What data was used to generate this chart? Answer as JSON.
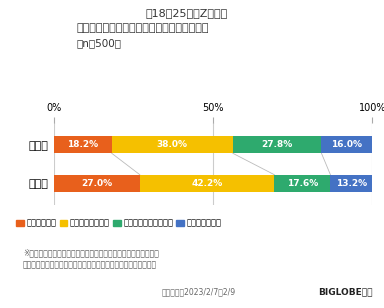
{
  "title_line1": "【18〜25歳のZ世代】",
  "title_line2": "日常生活でタイパ・コスパを意識しているか",
  "title_line3": "（n＝500）",
  "categories": [
    "タイパ",
    "コスパ"
  ],
  "segments": [
    {
      "label": "意識している",
      "color": "#E8601C",
      "values": [
        18.2,
        27.0
      ]
    },
    {
      "label": "やや意識している",
      "color": "#F5C000",
      "values": [
        38.0,
        42.2
      ]
    },
    {
      "label": "あまり意識していない",
      "color": "#2EAA6E",
      "values": [
        27.8,
        17.6
      ]
    },
    {
      "label": "意識していない",
      "color": "#4472C4",
      "values": [
        16.0,
        13.2
      ]
    }
  ],
  "footnote_line1": "※タイパ（タイムパフォーマンス）＝かけた時間に対する満足度",
  "footnote_line2": "　コスパ（コストパフォーマンス）＝かけた費用に対する満足度",
  "footer_date": "調査期間：2023/2/7〜2/9",
  "footer_brand": "BIGLOBE調べ",
  "bg_color": "#FFFFFF",
  "bar_height": 0.45,
  "connector_color": "#BBBBBB"
}
